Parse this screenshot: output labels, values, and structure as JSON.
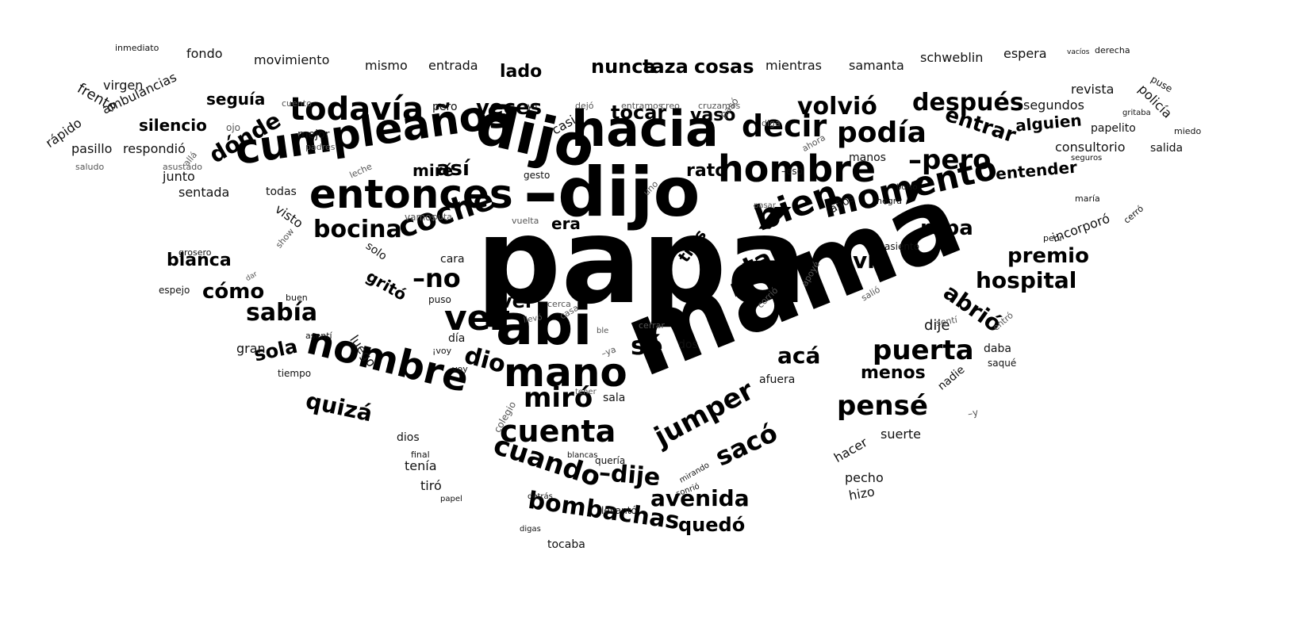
{
  "wordcloud": {
    "words": [
      "papá",
      "mamá",
      "–dijo",
      "dijo",
      "hacia",
      "abi",
      "cumpleaños",
      "entonces",
      "mano",
      "nombre",
      "hombre",
      "momento",
      "bien",
      "coche",
      "vez",
      "todavía",
      "decir",
      "podía",
      "–pero",
      "puerta",
      "cuenta",
      "cuando",
      "pensé",
      "jumper",
      "–dije",
      "sacó",
      "–no",
      "miró",
      "sé",
      "dio",
      "bocina",
      "tan",
      "después",
      "volvió",
      "hospital",
      "sabía",
      "quizá",
      "avenida",
      "bombachas",
      "premio",
      "abrió",
      "entrar",
      "ropa",
      "vio",
      "acá",
      "dónde",
      "así",
      "veces",
      "tocar",
      "vaso",
      "cómo",
      "sola",
      "quedó",
      "menos",
      "ver",
      "entender",
      "alguien",
      "seguía",
      "silencio",
      "blanca",
      "rato",
      "gritó",
      "tres",
      "miré",
      "era",
      "nunca",
      "taza",
      "cosas",
      "lado",
      "mismo",
      "entrada",
      "mientras",
      "samanta",
      "schweblin",
      "espera",
      "movimiento",
      "fondo",
      "inmediato",
      "frente",
      "rápido",
      "ambulancias",
      "virgen",
      "pasillo",
      "respondió",
      "junto",
      "sentada",
      "mejor",
      "todas",
      "visto",
      "solo",
      "cara",
      "puso",
      "día",
      "¡voy",
      "voy",
      "dios",
      "final",
      "tenía",
      "tiró",
      "papel",
      "colegio",
      "detrás",
      "tocaba",
      "digas",
      "levantó",
      "sonrió",
      "blancas",
      "quería",
      "mirando",
      "sala",
      "tener",
      "hacer",
      "suerte",
      "pecho",
      "hizo",
      "nadie",
      "daba",
      "saqué",
      "dije",
      "consultorio",
      "salida",
      "miedo",
      "papelito",
      "segundos",
      "revista",
      "policía",
      "puse",
      "derecha",
      "vacíos",
      "gritaba",
      "seguros",
      "maría",
      "peor",
      "incorporó",
      "cerró",
      "dejó",
      "entramos",
      "creo",
      "cruzamos",
      "pero",
      "casi",
      "–yo",
      "–eso",
      "manos",
      "años",
      "negra",
      "bolso",
      "pasar",
      "apoyé",
      "asiento",
      "corrió",
      "salió",
      "gesto",
      "vuelta",
      "vamos",
      "puta",
      "cerca",
      "llevó",
      "casa",
      "dos",
      "cerrar",
      "afuera",
      "luego",
      "gran",
      "tiempo",
      "asentí",
      "buen",
      "espejo",
      "dar",
      "show",
      "grosero",
      "sentí",
      "–ya",
      "ble",
      "entró",
      "pasó",
      "diga",
      "ahora",
      "saludo",
      "padres",
      "ojo",
      "leche",
      "asustado",
      "cuento",
      "uno",
      "allá",
      "–y"
    ]
  }
}
